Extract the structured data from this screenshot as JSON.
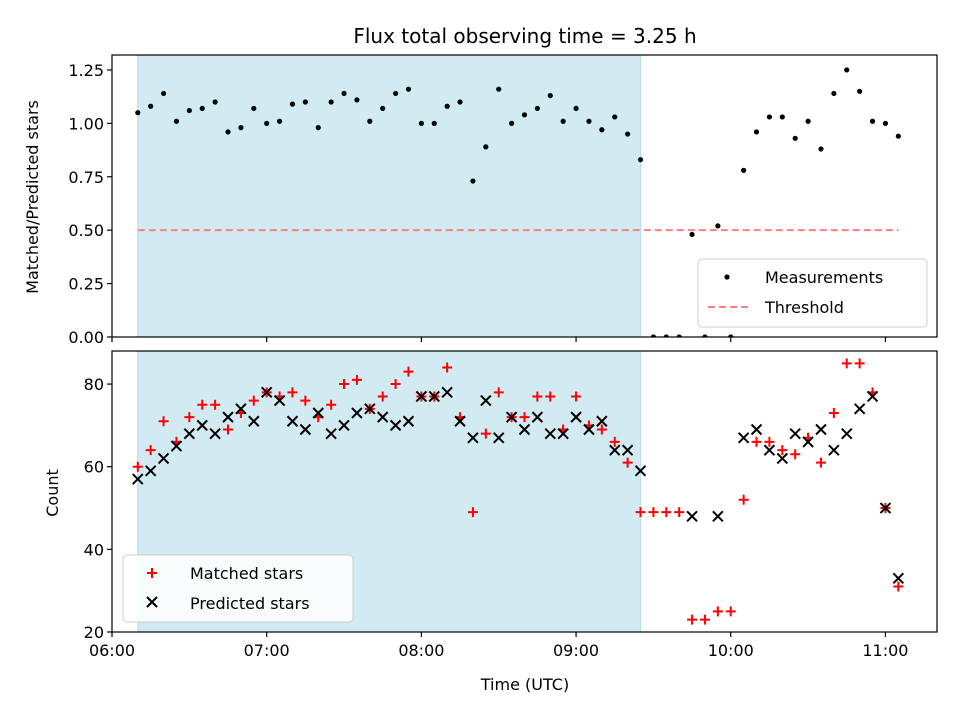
{
  "chart_data": [
    {
      "type": "scatter",
      "title": "Flux total observing time = 3.25 h",
      "xlabel": "",
      "ylabel": "Matched/Predicted stars",
      "xlim": [
        "06:00",
        "11:20"
      ],
      "ylim": [
        0,
        1.32
      ],
      "yticks": [
        "0.00",
        "0.25",
        "0.50",
        "0.75",
        "1.00",
        "1.25"
      ],
      "shaded_region": {
        "start": "06:10",
        "end": "09:25",
        "color": "#add8e6"
      },
      "legend": {
        "location": "lower-right",
        "entries": [
          "Measurements",
          "Threshold"
        ]
      },
      "series": [
        {
          "name": "Measurements",
          "marker": "dot",
          "color": "#000000",
          "points": [
            [
              "06:10",
              1.05
            ],
            [
              "06:15",
              1.08
            ],
            [
              "06:20",
              1.14
            ],
            [
              "06:25",
              1.01
            ],
            [
              "06:30",
              1.06
            ],
            [
              "06:35",
              1.07
            ],
            [
              "06:40",
              1.1
            ],
            [
              "06:45",
              0.96
            ],
            [
              "06:50",
              0.98
            ],
            [
              "06:55",
              1.07
            ],
            [
              "07:00",
              1.0
            ],
            [
              "07:05",
              1.01
            ],
            [
              "07:10",
              1.09
            ],
            [
              "07:15",
              1.1
            ],
            [
              "07:20",
              0.98
            ],
            [
              "07:25",
              1.1
            ],
            [
              "07:30",
              1.14
            ],
            [
              "07:35",
              1.11
            ],
            [
              "07:40",
              1.01
            ],
            [
              "07:45",
              1.07
            ],
            [
              "07:50",
              1.14
            ],
            [
              "07:55",
              1.16
            ],
            [
              "08:00",
              1.0
            ],
            [
              "08:05",
              1.0
            ],
            [
              "08:10",
              1.08
            ],
            [
              "08:15",
              1.1
            ],
            [
              "08:20",
              0.73
            ],
            [
              "08:25",
              0.89
            ],
            [
              "08:30",
              1.16
            ],
            [
              "08:35",
              1.0
            ],
            [
              "08:40",
              1.04
            ],
            [
              "08:45",
              1.07
            ],
            [
              "08:50",
              1.13
            ],
            [
              "08:55",
              1.01
            ],
            [
              "09:00",
              1.07
            ],
            [
              "09:05",
              1.01
            ],
            [
              "09:10",
              0.97
            ],
            [
              "09:15",
              1.03
            ],
            [
              "09:20",
              0.95
            ],
            [
              "09:25",
              0.83
            ],
            [
              "09:30",
              0.0
            ],
            [
              "09:35",
              0.0
            ],
            [
              "09:40",
              0.0
            ],
            [
              "09:45",
              0.48
            ],
            [
              "09:50",
              0.0
            ],
            [
              "09:55",
              0.52
            ],
            [
              "10:00",
              0.0
            ],
            [
              "10:05",
              0.78
            ],
            [
              "10:10",
              0.96
            ],
            [
              "10:15",
              1.03
            ],
            [
              "10:20",
              1.03
            ],
            [
              "10:25",
              0.93
            ],
            [
              "10:30",
              1.01
            ],
            [
              "10:35",
              0.88
            ],
            [
              "10:40",
              1.14
            ],
            [
              "10:45",
              1.25
            ],
            [
              "10:50",
              1.15
            ],
            [
              "10:55",
              1.01
            ],
            [
              "11:00",
              1.0
            ],
            [
              "11:05",
              0.94
            ]
          ]
        },
        {
          "name": "Threshold",
          "marker": "dashed-line",
          "color": "#ff7f7f",
          "points": [
            [
              "06:10",
              0.5
            ],
            [
              "11:05",
              0.5
            ]
          ]
        }
      ]
    },
    {
      "type": "scatter",
      "title": "",
      "xlabel": "Time (UTC)",
      "ylabel": "Count",
      "xlim": [
        "06:00",
        "11:20"
      ],
      "ylim": [
        20,
        88
      ],
      "xticks": [
        "06:00",
        "07:00",
        "08:00",
        "09:00",
        "10:00",
        "11:00"
      ],
      "yticks": [
        "20",
        "40",
        "60",
        "80"
      ],
      "shaded_region": {
        "start": "06:10",
        "end": "09:25",
        "color": "#add8e6"
      },
      "legend": {
        "location": "lower-left",
        "entries": [
          "Matched stars",
          "Predicted stars"
        ]
      },
      "series": [
        {
          "name": "Matched stars",
          "marker": "plus",
          "color": "#ff0000",
          "points": [
            [
              "06:10",
              60
            ],
            [
              "06:15",
              64
            ],
            [
              "06:20",
              71
            ],
            [
              "06:25",
              66
            ],
            [
              "06:30",
              72
            ],
            [
              "06:35",
              75
            ],
            [
              "06:40",
              75
            ],
            [
              "06:45",
              69
            ],
            [
              "06:50",
              73
            ],
            [
              "06:55",
              76
            ],
            [
              "07:00",
              78
            ],
            [
              "07:05",
              77
            ],
            [
              "07:10",
              78
            ],
            [
              "07:15",
              76
            ],
            [
              "07:20",
              72
            ],
            [
              "07:25",
              75
            ],
            [
              "07:30",
              80
            ],
            [
              "07:35",
              81
            ],
            [
              "07:40",
              74
            ],
            [
              "07:45",
              77
            ],
            [
              "07:50",
              80
            ],
            [
              "07:55",
              83
            ],
            [
              "08:00",
              77
            ],
            [
              "08:05",
              77
            ],
            [
              "08:10",
              84
            ],
            [
              "08:15",
              72
            ],
            [
              "08:20",
              49
            ],
            [
              "08:25",
              68
            ],
            [
              "08:30",
              78
            ],
            [
              "08:35",
              72
            ],
            [
              "08:40",
              72
            ],
            [
              "08:45",
              77
            ],
            [
              "08:50",
              77
            ],
            [
              "08:55",
              69
            ],
            [
              "09:00",
              77
            ],
            [
              "09:05",
              70
            ],
            [
              "09:10",
              69
            ],
            [
              "09:15",
              66
            ],
            [
              "09:20",
              61
            ],
            [
              "09:25",
              49
            ],
            [
              "09:30",
              49
            ],
            [
              "09:35",
              49
            ],
            [
              "09:40",
              49
            ],
            [
              "09:45",
              23
            ],
            [
              "09:50",
              23
            ],
            [
              "09:55",
              25
            ],
            [
              "10:00",
              25
            ],
            [
              "10:05",
              52
            ],
            [
              "10:10",
              66
            ],
            [
              "10:15",
              66
            ],
            [
              "10:20",
              64
            ],
            [
              "10:25",
              63
            ],
            [
              "10:30",
              67
            ],
            [
              "10:35",
              61
            ],
            [
              "10:40",
              73
            ],
            [
              "10:45",
              85
            ],
            [
              "10:50",
              85
            ],
            [
              "10:55",
              78
            ],
            [
              "11:00",
              50
            ],
            [
              "11:05",
              31
            ]
          ]
        },
        {
          "name": "Predicted stars",
          "marker": "x",
          "color": "#000000",
          "points": [
            [
              "06:10",
              57
            ],
            [
              "06:15",
              59
            ],
            [
              "06:20",
              62
            ],
            [
              "06:25",
              65
            ],
            [
              "06:30",
              68
            ],
            [
              "06:35",
              70
            ],
            [
              "06:40",
              68
            ],
            [
              "06:45",
              72
            ],
            [
              "06:50",
              74
            ],
            [
              "06:55",
              71
            ],
            [
              "07:00",
              78
            ],
            [
              "07:05",
              76
            ],
            [
              "07:10",
              71
            ],
            [
              "07:15",
              69
            ],
            [
              "07:20",
              73
            ],
            [
              "07:25",
              68
            ],
            [
              "07:30",
              70
            ],
            [
              "07:35",
              73
            ],
            [
              "07:40",
              74
            ],
            [
              "07:45",
              72
            ],
            [
              "07:50",
              70
            ],
            [
              "07:55",
              71
            ],
            [
              "08:00",
              77
            ],
            [
              "08:05",
              77
            ],
            [
              "08:10",
              78
            ],
            [
              "08:15",
              71
            ],
            [
              "08:20",
              67
            ],
            [
              "08:25",
              76
            ],
            [
              "08:30",
              67
            ],
            [
              "08:35",
              72
            ],
            [
              "08:40",
              69
            ],
            [
              "08:45",
              72
            ],
            [
              "08:50",
              68
            ],
            [
              "08:55",
              68
            ],
            [
              "09:00",
              72
            ],
            [
              "09:05",
              69
            ],
            [
              "09:10",
              71
            ],
            [
              "09:15",
              64
            ],
            [
              "09:20",
              64
            ],
            [
              "09:25",
              59
            ],
            [
              "09:45",
              48
            ],
            [
              "09:55",
              48
            ],
            [
              "10:05",
              67
            ],
            [
              "10:10",
              69
            ],
            [
              "10:15",
              64
            ],
            [
              "10:20",
              62
            ],
            [
              "10:25",
              68
            ],
            [
              "10:30",
              66
            ],
            [
              "10:35",
              69
            ],
            [
              "10:40",
              64
            ],
            [
              "10:45",
              68
            ],
            [
              "10:50",
              74
            ],
            [
              "10:55",
              77
            ],
            [
              "11:00",
              50
            ],
            [
              "11:05",
              33
            ]
          ]
        }
      ]
    }
  ]
}
